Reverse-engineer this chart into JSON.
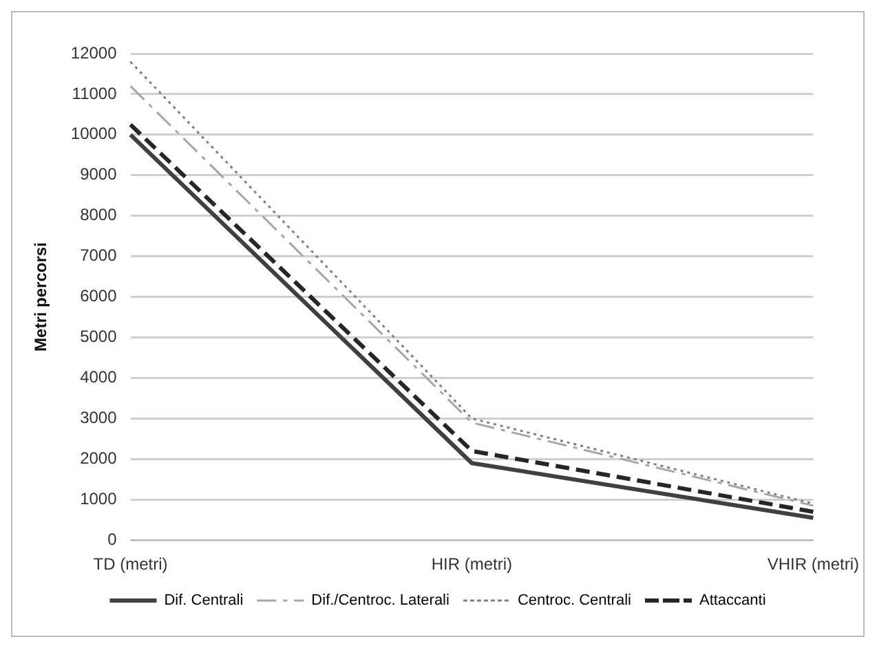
{
  "chart_data": {
    "type": "line",
    "ylabel": "Metri percorsi",
    "categories": [
      "TD (metri)",
      "HIR (metri)",
      "VHIR (metri)"
    ],
    "series": [
      {
        "name": "Dif. Centrali",
        "color": "#404040",
        "line_style": "solid",
        "values": [
          10000,
          1900,
          550
        ]
      },
      {
        "name": "Dif./Centroc. Laterali",
        "color": "#a6a6a6",
        "line_style": "dashed",
        "values": [
          11200,
          2900,
          850
        ]
      },
      {
        "name": "Centroc. Centrali",
        "color": "#7f7f7f",
        "line_style": "dotted",
        "values": [
          11800,
          3000,
          900
        ]
      },
      {
        "name": "Attaccanti",
        "color": "#262626",
        "line_style": "dashed",
        "values": [
          10250,
          2200,
          700
        ]
      }
    ],
    "ylim": [
      0,
      12000
    ],
    "yticks": [
      0,
      1000,
      2000,
      3000,
      4000,
      5000,
      6000,
      7000,
      8000,
      9000,
      10000,
      11000,
      12000
    ],
    "grid": "y",
    "legend": "bottom",
    "marker": "none"
  }
}
